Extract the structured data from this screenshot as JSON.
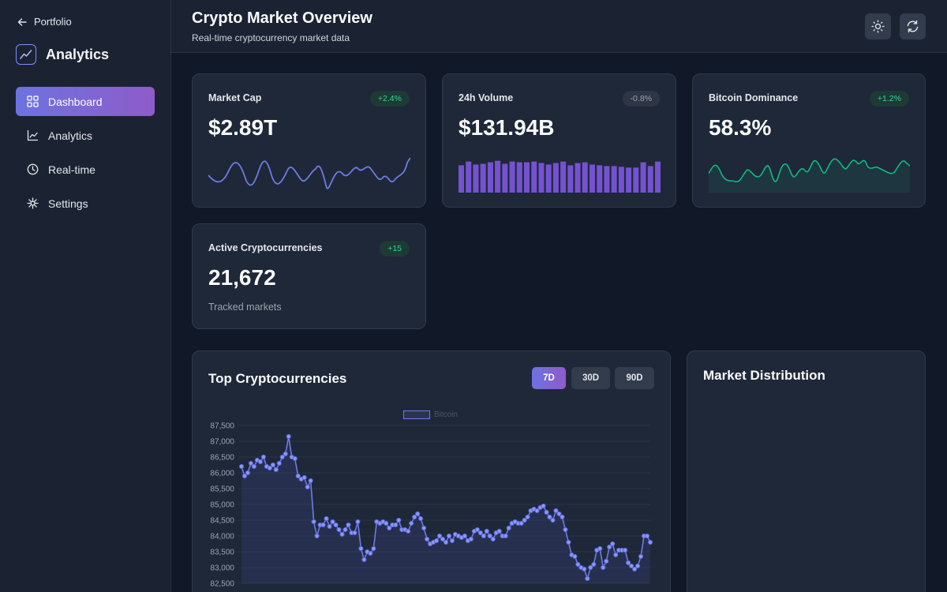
{
  "sidebar": {
    "back_label": "Portfolio",
    "brand_title": "Analytics",
    "items": [
      {
        "label": "Dashboard",
        "icon": "grid-icon",
        "active": true
      },
      {
        "label": "Analytics",
        "icon": "line-chart-icon",
        "active": false
      },
      {
        "label": "Real-time",
        "icon": "clock-icon",
        "active": false
      },
      {
        "label": "Settings",
        "icon": "settings-icon",
        "active": false
      }
    ]
  },
  "header": {
    "title": "Crypto Market Overview",
    "subtitle": "Real-time cryptocurrency market data",
    "buttons": [
      "sun-icon",
      "refresh-icon"
    ]
  },
  "stats": [
    {
      "label": "Market Cap",
      "value": "$2.89T",
      "change": "+2.4%",
      "trend": "positive",
      "spark": "line",
      "color": "#6d7be8"
    },
    {
      "label": "24h Volume",
      "value": "$131.94B",
      "change": "-0.8%",
      "trend": "negative",
      "spark": "bar",
      "color": "#8b5cf6"
    },
    {
      "label": "Bitcoin Dominance",
      "value": "58.3%",
      "change": "+1.2%",
      "trend": "positive",
      "spark": "area",
      "color": "#10b981"
    },
    {
      "label": "Active Cryptocurrencies",
      "value": "21,672",
      "change": "+15",
      "trend": "positive",
      "sub": "Tracked markets"
    }
  ],
  "top_crypto": {
    "title": "Top Cryptocurrencies",
    "ranges": [
      "7D",
      "30D",
      "90D"
    ],
    "active_range": "7D",
    "legend": "Bitcoin"
  },
  "distribution": {
    "title": "Market Distribution"
  },
  "colors": {
    "accent": "#6d72e0",
    "accent_2": "#8e5cc9",
    "positive": "#34d399",
    "line": "#6d7be8"
  },
  "chart_data": {
    "type": "line",
    "title": "",
    "xlabel": "",
    "ylabel": "",
    "yticks": [
      82500,
      83000,
      83500,
      84000,
      84500,
      85000,
      85500,
      86000,
      86500,
      87000,
      87500
    ],
    "ylim": [
      82500,
      87500
    ],
    "grid": true,
    "legend": "top-center",
    "series": [
      {
        "name": "Bitcoin",
        "values": [
          86200,
          85900,
          86000,
          86300,
          86200,
          86400,
          86350,
          86500,
          86200,
          86150,
          86250,
          86100,
          86300,
          86500,
          86600,
          87150,
          86500,
          86450,
          85900,
          85800,
          85850,
          85550,
          85750,
          84450,
          84000,
          84350,
          84350,
          84550,
          84300,
          84450,
          84350,
          84200,
          84050,
          84200,
          84350,
          84100,
          84100,
          84450,
          83600,
          83250,
          83500,
          83450,
          83600,
          84450,
          84400,
          84450,
          84400,
          84250,
          84350,
          84350,
          84500,
          84200,
          84200,
          84150,
          84400,
          84600,
          84700,
          84550,
          84250,
          83900,
          83750,
          83800,
          83850,
          84000,
          83900,
          83800,
          84000,
          83850,
          84050,
          84000,
          83950,
          84000,
          83850,
          83900,
          84150,
          84200,
          84100,
          84000,
          84150,
          84000,
          83900,
          84100,
          84150,
          84000,
          84000,
          84250,
          84400,
          84450,
          84400,
          84400,
          84500,
          84600,
          84800,
          84850,
          84800,
          84900,
          84950,
          84750,
          84600,
          84500,
          84800,
          84700,
          84600,
          84200,
          83800,
          83400,
          83350,
          83100,
          83000,
          82950,
          82650,
          83000,
          83100,
          83550,
          83600,
          83000,
          83200,
          83650,
          83750,
          83400,
          83550,
          83550,
          83550,
          83150,
          83050,
          82950,
          83050,
          83350,
          84000,
          84000,
          83800
        ]
      }
    ]
  }
}
